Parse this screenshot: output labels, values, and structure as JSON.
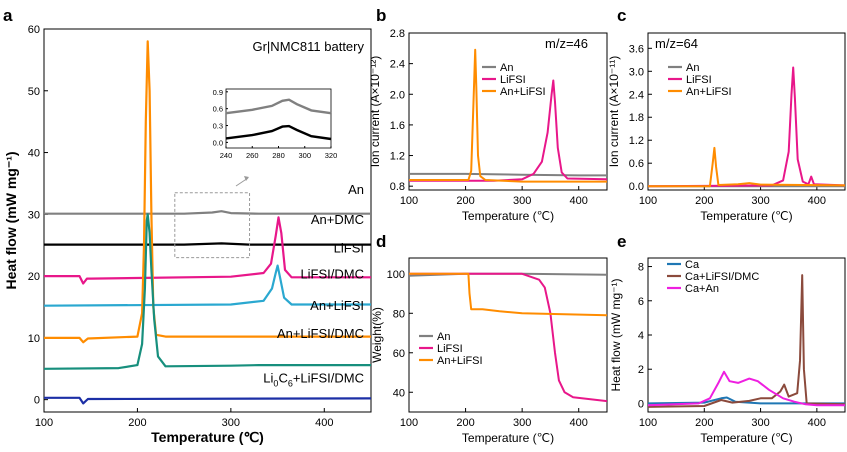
{
  "figure": {
    "domain": "scientific-figure"
  },
  "colors": {
    "grey": "#808080",
    "black": "#000000",
    "pink": "#e8178a",
    "cyan": "#2aa8d0",
    "orange": "#ff8c00",
    "teal": "#178f7d",
    "navy": "#1c2fa6",
    "blue": "#1f77b4",
    "brown": "#8b4a3c",
    "magenta": "#ee1fe0"
  },
  "chart_data": [
    {
      "panel": "a",
      "type": "line",
      "title": "Gr|NMC811 battery",
      "xlabel": "Temperature (℃)",
      "ylabel": "Heat flow (mW mg⁻¹)",
      "xlim": [
        100,
        450
      ],
      "ylim": [
        -2,
        60
      ],
      "xticks": [
        "100",
        "200",
        "300",
        "400"
      ],
      "yticks": [
        "0",
        "10",
        "20",
        "30",
        "40",
        "50",
        "60"
      ],
      "series": [
        {
          "name": "An",
          "color": "#808080",
          "points": [
            [
              100,
              30.1
            ],
            [
              250,
              30.1
            ],
            [
              280,
              30.3
            ],
            [
              290,
              30.5
            ],
            [
              300,
              30.2
            ],
            [
              330,
              30.1
            ],
            [
              450,
              30.1
            ]
          ]
        },
        {
          "name": "An+DMC",
          "color": "#000000",
          "points": [
            [
              100,
              25.1
            ],
            [
              250,
              25.1
            ],
            [
              290,
              25.3
            ],
            [
              320,
              25.1
            ],
            [
              450,
              25.1
            ]
          ]
        },
        {
          "name": "LiFSI",
          "color": "#e8178a",
          "points": [
            [
              100,
              20
            ],
            [
              138,
              20
            ],
            [
              142,
              18.8
            ],
            [
              146,
              19.6
            ],
            [
              150,
              19.6
            ],
            [
              300,
              19.9
            ],
            [
              335,
              20.5
            ],
            [
              343,
              22
            ],
            [
              348,
              26.5
            ],
            [
              351,
              29.5
            ],
            [
              354,
              27
            ],
            [
              358,
              21
            ],
            [
              365,
              19.8
            ],
            [
              450,
              19.8
            ]
          ]
        },
        {
          "name": "LiFSI/DMC",
          "color": "#2aa8d0",
          "points": [
            [
              100,
              15.2
            ],
            [
              300,
              15.4
            ],
            [
              335,
              16
            ],
            [
              344,
              18
            ],
            [
              348,
              20.5
            ],
            [
              350,
              21.7
            ],
            [
              353,
              19.5
            ],
            [
              357,
              16.5
            ],
            [
              365,
              15.4
            ],
            [
              450,
              15.4
            ]
          ]
        },
        {
          "name": "An+LiFSI",
          "color": "#ff8c00",
          "points": [
            [
              100,
              10
            ],
            [
              138,
              10
            ],
            [
              142,
              9.3
            ],
            [
              147,
              9.9
            ],
            [
              200,
              10.2
            ],
            [
              205,
              14
            ],
            [
              207,
              25
            ],
            [
              209,
              45
            ],
            [
              211,
              58
            ],
            [
              213,
              50
            ],
            [
              215,
              30
            ],
            [
              217,
              15
            ],
            [
              220,
              10.5
            ],
            [
              230,
              10.2
            ],
            [
              450,
              10.2
            ]
          ]
        },
        {
          "name": "An+LiFSI/DMC",
          "color": "#178f7d",
          "points": [
            [
              100,
              5
            ],
            [
              180,
              5.1
            ],
            [
              200,
              5.6
            ],
            [
              205,
              9
            ],
            [
              208,
              18
            ],
            [
              210,
              29
            ],
            [
              211,
              30
            ],
            [
              213,
              27
            ],
            [
              215,
              21
            ],
            [
              218,
              13
            ],
            [
              222,
              7
            ],
            [
              230,
              5.4
            ],
            [
              300,
              5.5
            ],
            [
              330,
              5.6
            ],
            [
              450,
              5.6
            ]
          ]
        },
        {
          "name": "Li0C6+LiFSI/DMC",
          "color": "#1c2fa6",
          "points": [
            [
              100,
              0.3
            ],
            [
              138,
              0.3
            ],
            [
              142,
              -0.6
            ],
            [
              147,
              0.1
            ],
            [
              450,
              0.2
            ]
          ]
        }
      ],
      "labels": [
        "An",
        "An+DMC",
        "LiFSI",
        "LiFSI/DMC",
        "An+LiFSI",
        "An+LiFSI/DMC"
      ],
      "label_li_pre": "Li",
      "label_li_sub": "0",
      "label_li_mid": "C",
      "label_li_sub2": "6",
      "label_li_post": "+LiFSI/DMC",
      "inset": {
        "xlim": [
          240,
          320
        ],
        "ylim": [
          -0.1,
          0.95
        ],
        "xticks": [
          "240",
          "260",
          "280",
          "300",
          "320"
        ],
        "yticks": [
          "0.0",
          "0.3",
          "0.6",
          "0.9"
        ],
        "series": [
          {
            "name": "An",
            "color": "#808080",
            "points": [
              [
                240,
                0.52
              ],
              [
                260,
                0.58
              ],
              [
                275,
                0.65
              ],
              [
                283,
                0.74
              ],
              [
                288,
                0.76
              ],
              [
                294,
                0.68
              ],
              [
                305,
                0.57
              ],
              [
                320,
                0.52
              ]
            ]
          },
          {
            "name": "An+DMC",
            "color": "#000000",
            "points": [
              [
                240,
                0.07
              ],
              [
                260,
                0.13
              ],
              [
                275,
                0.2
              ],
              [
                283,
                0.28
              ],
              [
                288,
                0.29
              ],
              [
                294,
                0.22
              ],
              [
                305,
                0.11
              ],
              [
                320,
                0.06
              ]
            ]
          }
        ]
      }
    },
    {
      "panel": "b",
      "type": "line",
      "title": "m/z=46",
      "xlabel": "Temperature (℃)",
      "ylabel": "Ion current (A×10⁻¹²)",
      "xlim": [
        100,
        450
      ],
      "ylim": [
        0.75,
        2.8
      ],
      "xticks": [
        "100",
        "200",
        "300",
        "400"
      ],
      "yticks": [
        "0.8",
        "1.2",
        "1.6",
        "2.0",
        "2.4",
        "2.8"
      ],
      "legend": [
        "An",
        "LiFSI",
        "An+LiFSI"
      ],
      "series": [
        {
          "name": "An",
          "color": "#808080",
          "points": [
            [
              100,
              0.96
            ],
            [
              200,
              0.96
            ],
            [
              300,
              0.95
            ],
            [
              400,
              0.94
            ],
            [
              450,
              0.94
            ]
          ]
        },
        {
          "name": "LiFSI",
          "color": "#e8178a",
          "points": [
            [
              100,
              0.87
            ],
            [
              250,
              0.87
            ],
            [
              300,
              0.89
            ],
            [
              320,
              0.96
            ],
            [
              335,
              1.12
            ],
            [
              345,
              1.5
            ],
            [
              352,
              2.0
            ],
            [
              355,
              2.18
            ],
            [
              358,
              1.9
            ],
            [
              363,
              1.3
            ],
            [
              370,
              0.98
            ],
            [
              380,
              0.9
            ],
            [
              450,
              0.89
            ]
          ]
        },
        {
          "name": "An+LiFSI",
          "color": "#ff8c00",
          "points": [
            [
              100,
              0.88
            ],
            [
              205,
              0.88
            ],
            [
              210,
              1.0
            ],
            [
              214,
              1.9
            ],
            [
              217,
              2.58
            ],
            [
              219,
              2.1
            ],
            [
              222,
              1.2
            ],
            [
              226,
              0.93
            ],
            [
              235,
              0.88
            ],
            [
              300,
              0.86
            ],
            [
              400,
              0.86
            ],
            [
              450,
              0.86
            ]
          ]
        }
      ]
    },
    {
      "panel": "c",
      "type": "line",
      "title": "m/z=64",
      "xlabel": "Temperature (℃)",
      "ylabel": "Ion current (A×10⁻¹¹)",
      "xlim": [
        100,
        450
      ],
      "ylim": [
        -0.1,
        4.0
      ],
      "xticks": [
        "100",
        "200",
        "300",
        "400"
      ],
      "yticks": [
        "0.0",
        "0.6",
        "1.2",
        "1.8",
        "2.4",
        "3.0",
        "3.6"
      ],
      "legend": [
        "An",
        "LiFSI",
        "An+LiFSI"
      ],
      "series": [
        {
          "name": "An",
          "color": "#808080",
          "points": [
            [
              100,
              0.0
            ],
            [
              450,
              0.0
            ]
          ]
        },
        {
          "name": "LiFSI",
          "color": "#e8178a",
          "points": [
            [
              100,
              0
            ],
            [
              320,
              0.02
            ],
            [
              340,
              0.15
            ],
            [
              350,
              0.9
            ],
            [
              355,
              2.4
            ],
            [
              358,
              3.1
            ],
            [
              361,
              2.3
            ],
            [
              366,
              0.7
            ],
            [
              375,
              0.12
            ],
            [
              385,
              0.05
            ],
            [
              390,
              0.25
            ],
            [
              395,
              0.05
            ],
            [
              450,
              0.02
            ]
          ]
        },
        {
          "name": "An+LiFSI",
          "color": "#ff8c00",
          "points": [
            [
              100,
              0
            ],
            [
              210,
              0
            ],
            [
              215,
              0.6
            ],
            [
              218,
              1.0
            ],
            [
              221,
              0.5
            ],
            [
              225,
              0.03
            ],
            [
              260,
              0.05
            ],
            [
              280,
              0.08
            ],
            [
              300,
              0.04
            ],
            [
              450,
              0.02
            ]
          ]
        }
      ]
    },
    {
      "panel": "d",
      "type": "line",
      "xlabel": "Temperature (℃)",
      "ylabel": "Weight(%)",
      "xlim": [
        100,
        450
      ],
      "ylim": [
        30,
        108
      ],
      "xticks": [
        "100",
        "200",
        "300",
        "400"
      ],
      "yticks": [
        "40",
        "60",
        "80",
        "100"
      ],
      "legend": [
        "An",
        "LiFSI",
        "An+LiFSI"
      ],
      "series": [
        {
          "name": "An",
          "color": "#808080",
          "points": [
            [
              100,
              99
            ],
            [
              200,
              100
            ],
            [
              300,
              100
            ],
            [
              450,
              99.5
            ]
          ]
        },
        {
          "name": "LiFSI",
          "color": "#e8178a",
          "points": [
            [
              100,
              100
            ],
            [
              300,
              100
            ],
            [
              330,
              97
            ],
            [
              340,
              93
            ],
            [
              350,
              80
            ],
            [
              358,
              60
            ],
            [
              365,
              46
            ],
            [
              375,
              40
            ],
            [
              390,
              37.5
            ],
            [
              450,
              35.5
            ]
          ]
        },
        {
          "name": "An+LiFSI",
          "color": "#ff8c00",
          "points": [
            [
              100,
              100
            ],
            [
              205,
              100
            ],
            [
              207,
              90
            ],
            [
              210,
              82
            ],
            [
              230,
              82
            ],
            [
              260,
              81
            ],
            [
              300,
              80
            ],
            [
              450,
              79
            ]
          ]
        }
      ]
    },
    {
      "panel": "e",
      "type": "line",
      "xlabel": "Temperature (℃)",
      "ylabel": "Heat flow (mW mg⁻¹)",
      "xlim": [
        100,
        450
      ],
      "ylim": [
        -0.5,
        8.5
      ],
      "xticks": [
        "100",
        "200",
        "300",
        "400"
      ],
      "yticks": [
        "0",
        "2",
        "4",
        "6",
        "8"
      ],
      "legend": [
        "Ca",
        "Ca+LiFSI/DMC",
        "Ca+An"
      ],
      "series": [
        {
          "name": "Ca",
          "color": "#1f77b4",
          "points": [
            [
              100,
              0.0
            ],
            [
              200,
              0.05
            ],
            [
              230,
              0.3
            ],
            [
              240,
              0.35
            ],
            [
              255,
              0.1
            ],
            [
              300,
              0.0
            ],
            [
              450,
              0.0
            ]
          ]
        },
        {
          "name": "Ca+LiFSI/DMC",
          "color": "#8b4a3c",
          "points": [
            [
              100,
              -0.2
            ],
            [
              200,
              -0.15
            ],
            [
              230,
              0.2
            ],
            [
              250,
              0.05
            ],
            [
              280,
              0.15
            ],
            [
              300,
              0.3
            ],
            [
              320,
              0.3
            ],
            [
              335,
              0.7
            ],
            [
              342,
              1.1
            ],
            [
              350,
              0.4
            ],
            [
              365,
              0.6
            ],
            [
              370,
              2.5
            ],
            [
              374,
              7.5
            ],
            [
              377,
              2
            ],
            [
              382,
              0.0
            ],
            [
              450,
              -0.05
            ]
          ]
        },
        {
          "name": "Ca+An",
          "color": "#ee1fe0",
          "points": [
            [
              100,
              -0.1
            ],
            [
              190,
              0.0
            ],
            [
              210,
              0.3
            ],
            [
              225,
              1.2
            ],
            [
              235,
              1.85
            ],
            [
              245,
              1.3
            ],
            [
              260,
              1.2
            ],
            [
              280,
              1.45
            ],
            [
              295,
              1.3
            ],
            [
              315,
              0.8
            ],
            [
              340,
              0.3
            ],
            [
              360,
              0.1
            ],
            [
              380,
              -0.05
            ],
            [
              400,
              -0.1
            ],
            [
              450,
              -0.1
            ]
          ]
        }
      ]
    }
  ]
}
